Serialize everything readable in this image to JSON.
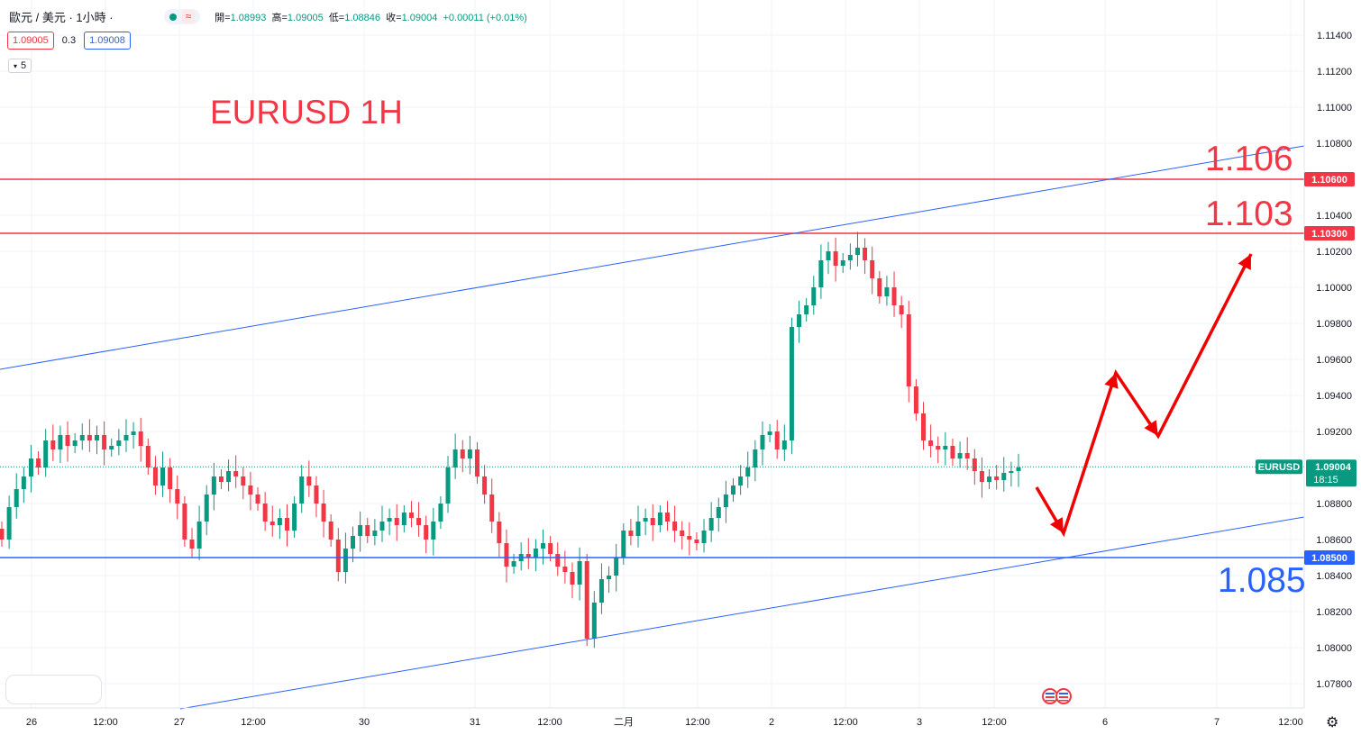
{
  "header": {
    "symbol": "歐元 / 美元 · 1小時 ·",
    "wave_icon_label": "≈",
    "ohlc": {
      "open_label": "開=",
      "open": "1.08993",
      "high_label": "高=",
      "high": "1.09005",
      "low_label": "低=",
      "low": "1.08846",
      "close_label": "收=",
      "close": "1.09004",
      "change": "+0.00011 (+0.01%)"
    }
  },
  "quotes": {
    "sell": "1.09005",
    "spread": "0.3",
    "buy": "1.09008"
  },
  "indicator": {
    "label": "5"
  },
  "annotations": {
    "title": "EURUSD 1H",
    "r1": "1.106",
    "r2": "1.103",
    "s1": "1.085"
  },
  "colors": {
    "up": "#089981",
    "down": "#f23645",
    "resistance": "#f23645",
    "support": "#2962ff",
    "arrow": "#f00000"
  },
  "chart_data": {
    "type": "candlestick",
    "symbol": "EURUSD",
    "ylim": [
      1.077,
      1.115
    ],
    "y_ticks": [
      "1.07800",
      "1.08000",
      "1.08200",
      "1.08400",
      "1.08600",
      "1.08800",
      "1.09000",
      "1.09200",
      "1.09400",
      "1.09600",
      "1.09800",
      "1.10000",
      "1.10200",
      "1.10400",
      "1.10600",
      "1.10800",
      "1.11000",
      "1.11200",
      "1.11400"
    ],
    "x_ticks": [
      "26",
      "12:00",
      "27",
      "12:00",
      "30",
      "31",
      "12:00",
      "二月",
      "12:00",
      "2",
      "12:00",
      "3",
      "12:00",
      "6",
      "7",
      "12:00"
    ],
    "price_label": {
      "symbol": "EURUSD",
      "price": "1.09004",
      "countdown": "18:15"
    },
    "levels": [
      {
        "price": 1.106,
        "label": "1.10600"
      },
      {
        "price": 1.103,
        "label": "1.10300"
      },
      {
        "price": 1.085,
        "label": "1.08500"
      }
    ],
    "series_close": [
      1.086,
      1.0878,
      1.0888,
      1.0895,
      1.0905,
      1.09,
      1.0915,
      1.091,
      1.0918,
      1.0912,
      1.0915,
      1.0918,
      1.0915,
      1.0918,
      1.091,
      1.0912,
      1.0915,
      1.0918,
      1.092,
      1.0912,
      1.09,
      1.089,
      1.09,
      1.0888,
      1.088,
      1.086,
      1.0855,
      1.087,
      1.0885,
      1.0895,
      1.0892,
      1.0898,
      1.0895,
      1.089,
      1.0885,
      1.088,
      1.087,
      1.0868,
      1.0872,
      1.0865,
      1.088,
      1.0895,
      1.089,
      1.088,
      1.087,
      1.086,
      1.0842,
      1.0855,
      1.0862,
      1.0868,
      1.0862,
      1.0865,
      1.087,
      1.0872,
      1.0868,
      1.0875,
      1.0872,
      1.0868,
      1.086,
      1.087,
      1.088,
      1.09,
      1.091,
      1.0905,
      1.091,
      1.0895,
      1.0885,
      1.087,
      1.0858,
      1.0845,
      1.0848,
      1.0852,
      1.085,
      1.0855,
      1.0858,
      1.0852,
      1.0845,
      1.0842,
      1.0835,
      1.0848,
      1.0805,
      1.0825,
      1.0838,
      1.084,
      1.085,
      1.0865,
      1.0862,
      1.087,
      1.0872,
      1.0868,
      1.0875,
      1.087,
      1.0865,
      1.0862,
      1.086,
      1.0858,
      1.0865,
      1.0872,
      1.0878,
      1.0885,
      1.089,
      1.0895,
      1.09,
      1.091,
      1.0918,
      1.092,
      1.091,
      1.0915,
      1.0978,
      1.0985,
      1.099,
      1.1,
      1.1015,
      1.102,
      1.1012,
      1.1015,
      1.1018,
      1.1022,
      1.1015,
      1.1005,
      1.0995,
      1.1,
      1.099,
      1.0985,
      1.0945,
      1.093,
      1.0915,
      1.0912,
      1.091,
      1.0912,
      1.0905,
      1.0908,
      1.0905,
      1.0898,
      1.0892,
      1.0895,
      1.0893,
      1.0897,
      1.0898,
      1.09
    ]
  }
}
